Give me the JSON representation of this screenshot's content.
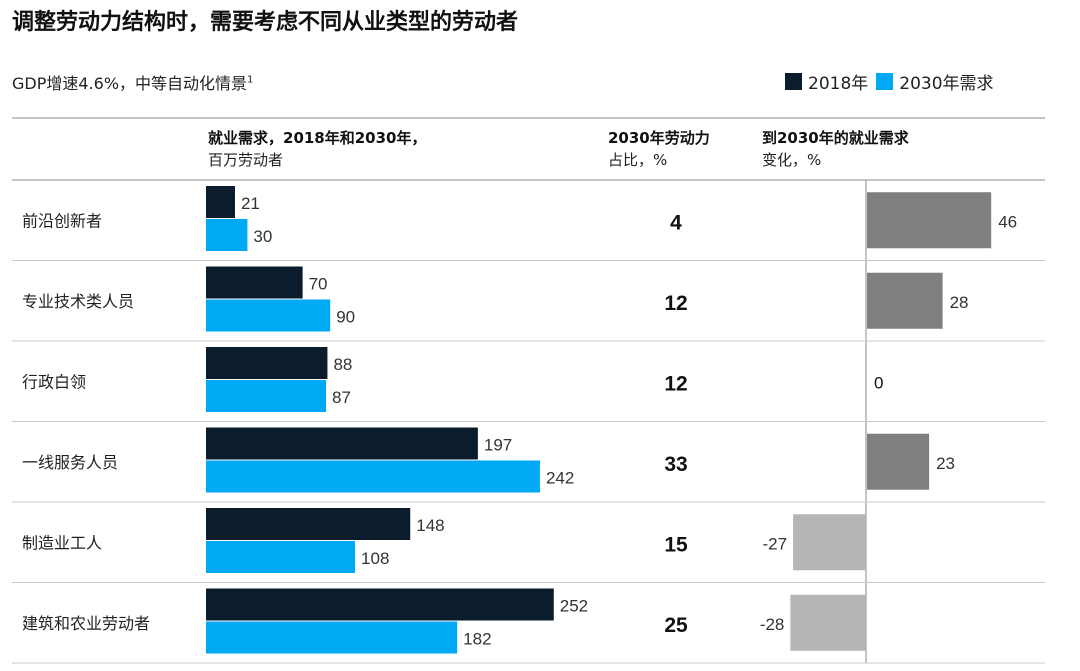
{
  "title": "调整劳动力结构时，需要考虑不同从业类型的劳动者",
  "subtitle": "GDP增速4.6%，中等自动化情景",
  "subtitle_sup": "1",
  "legend": [
    {
      "label": "2018年",
      "color": "#0b1c2c"
    },
    {
      "label": "2030年需求",
      "color": "#00a9f4"
    }
  ],
  "headers": {
    "demand_line1": "就业需求，2018年和2030年，",
    "demand_line2": "百万劳动者",
    "share_line1": "2030年劳动力",
    "share_line2": "占比，%",
    "change_line1": "到2030年的就业需求",
    "change_line2": "变化，%"
  },
  "chart_data": {
    "type": "bar",
    "title": "调整劳动力结构时，需要考虑不同从业类型的劳动者",
    "categories": [
      "前沿创新者",
      "专业技术类人员",
      "行政白领",
      "一线服务人员",
      "制造业工人",
      "建筑和农业劳动者"
    ],
    "series": [
      {
        "name": "2018年",
        "values": [
          21,
          70,
          88,
          197,
          148,
          252
        ],
        "color": "#0b1c2c"
      },
      {
        "name": "2030年需求",
        "values": [
          30,
          90,
          87,
          242,
          108,
          182
        ],
        "color": "#00a9f4"
      }
    ],
    "share_2030_pct": [
      4,
      12,
      12,
      33,
      15,
      25
    ],
    "change_pct": [
      46,
      28,
      0,
      23,
      -27,
      -28
    ],
    "change_labels": [
      "46",
      "28",
      "0",
      "23",
      "-27",
      "-28"
    ],
    "change_colors": {
      "positive": "#7f7f7f",
      "negative": "#b5b5b5"
    }
  }
}
